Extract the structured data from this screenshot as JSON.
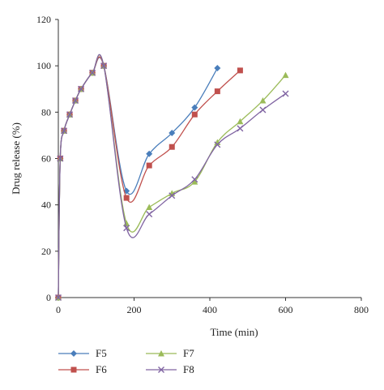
{
  "chart_data": {
    "type": "line",
    "xlabel": "Time (min)",
    "ylabel": "Drug release (%)",
    "xlim": [
      0,
      800
    ],
    "ylim": [
      0,
      120
    ],
    "xticks": [
      "0",
      "200",
      "400",
      "600",
      "800"
    ],
    "yticks": [
      "0",
      "20",
      "40",
      "60",
      "80",
      "100",
      "120"
    ],
    "grid": false,
    "legend_position": "bottom-left",
    "series": [
      {
        "name": "F5",
        "color": "#4a7ebb",
        "marker": "diamond",
        "x": [
          0,
          5,
          15,
          30,
          45,
          60,
          90,
          120,
          180,
          240,
          300,
          360,
          420
        ],
        "y": [
          0,
          60,
          72,
          79,
          85,
          90,
          97,
          100,
          46,
          62,
          71,
          82,
          99
        ]
      },
      {
        "name": "F6",
        "color": "#c0504d",
        "marker": "square",
        "x": [
          0,
          5,
          15,
          30,
          45,
          60,
          90,
          120,
          180,
          240,
          300,
          360,
          420,
          480
        ],
        "y": [
          0,
          60,
          72,
          79,
          85,
          90,
          97,
          100,
          43,
          57,
          65,
          79,
          89,
          98
        ]
      },
      {
        "name": "F7",
        "color": "#9bbb59",
        "marker": "triangle",
        "x": [
          0,
          5,
          15,
          30,
          45,
          60,
          90,
          120,
          180,
          240,
          300,
          360,
          420,
          480,
          540,
          600
        ],
        "y": [
          0,
          60,
          72,
          79,
          85,
          90,
          97,
          100,
          32,
          39,
          45,
          50,
          67,
          76,
          85,
          96
        ]
      },
      {
        "name": "F8",
        "color": "#8064a2",
        "marker": "x",
        "x": [
          0,
          5,
          15,
          30,
          45,
          60,
          90,
          120,
          180,
          240,
          300,
          360,
          420,
          480,
          540,
          600
        ],
        "y": [
          0,
          60,
          72,
          79,
          85,
          90,
          97,
          100,
          30,
          36,
          44,
          51,
          66,
          73,
          81,
          88
        ]
      }
    ]
  }
}
